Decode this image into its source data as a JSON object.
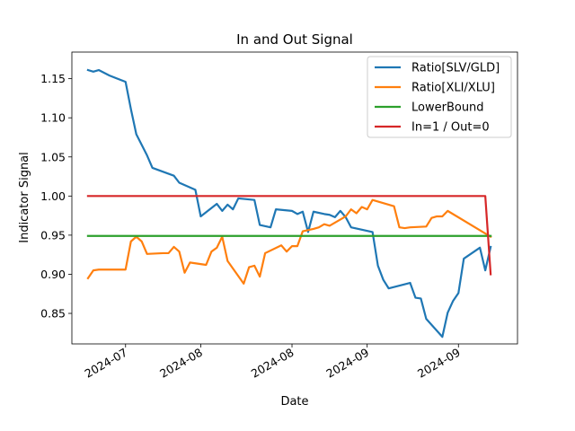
{
  "chart_data": {
    "type": "line",
    "title": "In and Out Signal",
    "xlabel": "Date",
    "ylabel": "Indicator Signal",
    "xlim": [
      "2024-06-21",
      "2024-09-12"
    ],
    "ylim": [
      0.811,
      1.184
    ],
    "x_tick_dates": [
      "2024-07-01",
      "2024-07-15",
      "2024-08-01",
      "2024-08-15",
      "2024-09-01"
    ],
    "x_tick_labels": [
      "2024-07",
      "2024-08",
      "2024-08",
      "2024-09",
      "2024-09"
    ],
    "y_ticks": [
      0.85,
      0.9,
      0.95,
      1.0,
      1.05,
      1.1,
      1.15
    ],
    "y_tick_labels": [
      "0.85",
      "0.90",
      "0.95",
      "1.00",
      "1.05",
      "1.10",
      "1.15"
    ],
    "grid": false,
    "legend_position": "top-right",
    "series": [
      {
        "name": "Ratio[SLV/GLD]",
        "color": "#1f77b4",
        "points": [
          [
            "2024-06-24",
            1.161
          ],
          [
            "2024-06-25",
            1.159
          ],
          [
            "2024-06-26",
            1.161
          ],
          [
            "2024-06-28",
            1.154
          ],
          [
            "2024-07-01",
            1.146
          ],
          [
            "2024-07-02",
            1.111
          ],
          [
            "2024-07-03",
            1.079
          ],
          [
            "2024-07-05",
            1.052
          ],
          [
            "2024-07-06",
            1.036
          ],
          [
            "2024-07-10",
            1.026
          ],
          [
            "2024-07-11",
            1.017
          ],
          [
            "2024-07-12",
            1.014
          ],
          [
            "2024-07-14",
            1.008
          ],
          [
            "2024-07-15",
            0.974
          ],
          [
            "2024-07-18",
            0.99
          ],
          [
            "2024-07-19",
            0.981
          ],
          [
            "2024-07-20",
            0.989
          ],
          [
            "2024-07-21",
            0.983
          ],
          [
            "2024-07-22",
            0.997
          ],
          [
            "2024-07-25",
            0.995
          ],
          [
            "2024-07-26",
            0.963
          ],
          [
            "2024-07-28",
            0.96
          ],
          [
            "2024-07-29",
            0.983
          ],
          [
            "2024-08-01",
            0.981
          ],
          [
            "2024-08-02",
            0.977
          ],
          [
            "2024-08-03",
            0.98
          ],
          [
            "2024-08-04",
            0.954
          ],
          [
            "2024-08-05",
            0.98
          ],
          [
            "2024-08-07",
            0.977
          ],
          [
            "2024-08-08",
            0.976
          ],
          [
            "2024-08-09",
            0.973
          ],
          [
            "2024-08-10",
            0.981
          ],
          [
            "2024-08-11",
            0.973
          ],
          [
            "2024-08-12",
            0.96
          ],
          [
            "2024-08-16",
            0.954
          ],
          [
            "2024-08-17",
            0.911
          ],
          [
            "2024-08-18",
            0.893
          ],
          [
            "2024-08-19",
            0.882
          ],
          [
            "2024-08-23",
            0.889
          ],
          [
            "2024-08-24",
            0.87
          ],
          [
            "2024-08-25",
            0.869
          ],
          [
            "2024-08-26",
            0.843
          ],
          [
            "2024-08-29",
            0.82
          ],
          [
            "2024-08-30",
            0.851
          ],
          [
            "2024-08-31",
            0.866
          ],
          [
            "2024-09-01",
            0.876
          ],
          [
            "2024-09-02",
            0.92
          ],
          [
            "2024-09-05",
            0.934
          ],
          [
            "2024-09-06",
            0.905
          ],
          [
            "2024-09-07",
            0.935
          ]
        ]
      },
      {
        "name": "Ratio[XLI/XLU]",
        "color": "#ff7f0e",
        "points": [
          [
            "2024-06-24",
            0.895
          ],
          [
            "2024-06-25",
            0.905
          ],
          [
            "2024-06-26",
            0.906
          ],
          [
            "2024-06-29",
            0.906
          ],
          [
            "2024-07-01",
            0.906
          ],
          [
            "2024-07-02",
            0.942
          ],
          [
            "2024-07-03",
            0.948
          ],
          [
            "2024-07-04",
            0.942
          ],
          [
            "2024-07-05",
            0.926
          ],
          [
            "2024-07-08",
            0.927
          ],
          [
            "2024-07-09",
            0.927
          ],
          [
            "2024-07-10",
            0.935
          ],
          [
            "2024-07-11",
            0.929
          ],
          [
            "2024-07-12",
            0.902
          ],
          [
            "2024-07-13",
            0.915
          ],
          [
            "2024-07-16",
            0.912
          ],
          [
            "2024-07-17",
            0.929
          ],
          [
            "2024-07-18",
            0.934
          ],
          [
            "2024-07-19",
            0.948
          ],
          [
            "2024-07-20",
            0.917
          ],
          [
            "2024-07-23",
            0.888
          ],
          [
            "2024-07-24",
            0.909
          ],
          [
            "2024-07-25",
            0.911
          ],
          [
            "2024-07-26",
            0.897
          ],
          [
            "2024-07-27",
            0.927
          ],
          [
            "2024-07-30",
            0.937
          ],
          [
            "2024-07-31",
            0.929
          ],
          [
            "2024-08-01",
            0.936
          ],
          [
            "2024-08-02",
            0.936
          ],
          [
            "2024-08-03",
            0.955
          ],
          [
            "2024-08-05",
            0.958
          ],
          [
            "2024-08-06",
            0.96
          ],
          [
            "2024-08-07",
            0.964
          ],
          [
            "2024-08-08",
            0.962
          ],
          [
            "2024-08-11",
            0.974
          ],
          [
            "2024-08-12",
            0.983
          ],
          [
            "2024-08-13",
            0.978
          ],
          [
            "2024-08-14",
            0.986
          ],
          [
            "2024-08-15",
            0.983
          ],
          [
            "2024-08-16",
            0.995
          ],
          [
            "2024-08-20",
            0.987
          ],
          [
            "2024-08-21",
            0.96
          ],
          [
            "2024-08-22",
            0.959
          ],
          [
            "2024-08-23",
            0.96
          ],
          [
            "2024-08-26",
            0.961
          ],
          [
            "2024-08-27",
            0.972
          ],
          [
            "2024-08-28",
            0.974
          ],
          [
            "2024-08-29",
            0.974
          ],
          [
            "2024-08-30",
            0.981
          ],
          [
            "2024-09-07",
            0.948
          ]
        ]
      },
      {
        "name": "LowerBound",
        "color": "#2ca02c",
        "points": [
          [
            "2024-06-24",
            0.949
          ],
          [
            "2024-09-07",
            0.949
          ]
        ]
      },
      {
        "name": "In=1 / Out=0",
        "color": "#d62728",
        "points": [
          [
            "2024-06-24",
            1.0
          ],
          [
            "2024-09-06",
            1.0
          ],
          [
            "2024-09-07",
            0.9
          ]
        ]
      }
    ]
  }
}
